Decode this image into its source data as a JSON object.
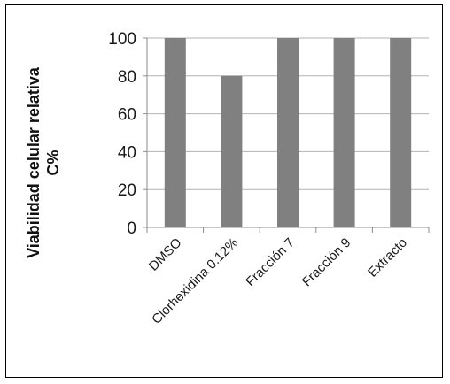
{
  "chart_data": {
    "type": "bar",
    "categories": [
      "DMSO",
      "Clorhexidina 0.12%",
      "Fracción 7",
      "Fracción 9",
      "Extracto"
    ],
    "values": [
      100,
      80,
      100,
      100,
      100
    ],
    "ylim": [
      0,
      100
    ],
    "yticks": [
      0,
      20,
      40,
      60,
      80,
      100
    ],
    "ylabel_line1": "Viabilidad celular relativa",
    "ylabel_line2": "C%",
    "xlabel": "",
    "title": "",
    "grid": true,
    "legend": "none",
    "bar_color": "#808080",
    "grid_color": "#b3b3b3",
    "axis_color": "#8c8c8c"
  }
}
